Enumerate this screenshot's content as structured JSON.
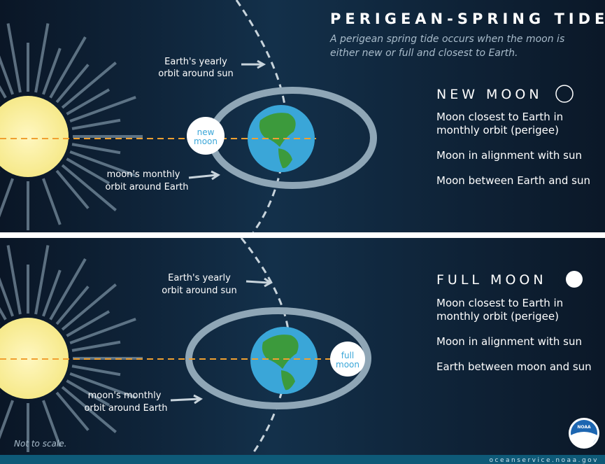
{
  "title": "PERIGEAN-SPRING TIDE",
  "subtitle": [
    "A perigean spring tide occurs when the moon is",
    "either new or full and closest to Earth."
  ],
  "panels": [
    {
      "heading": "NEW MOON",
      "moon_label": [
        "new",
        "moon"
      ],
      "yearly_label": [
        "Earth's yearly",
        "orbit around sun"
      ],
      "monthly_label": [
        "moon's monthly",
        "orbit around Earth"
      ],
      "facts": [
        [
          "Moon closest to Earth in",
          "monthly orbit (perigee)"
        ],
        [
          "Moon in alignment with sun"
        ],
        [
          "Moon between Earth and sun"
        ]
      ]
    },
    {
      "heading": "FULL MOON",
      "moon_label": [
        "full",
        "moon"
      ],
      "yearly_label": [
        "Earth's yearly",
        "orbit around sun"
      ],
      "monthly_label": [
        "moon's monthly",
        "orbit around Earth"
      ],
      "facts": [
        [
          "Moon closest to Earth in",
          "monthly orbit (perigee)"
        ],
        [
          "Moon in alignment with sun"
        ],
        [
          "Earth between moon and sun"
        ]
      ]
    }
  ],
  "note": "Not to scale.",
  "logo": "NOAA",
  "source": "oceanservice.noaa.gov"
}
